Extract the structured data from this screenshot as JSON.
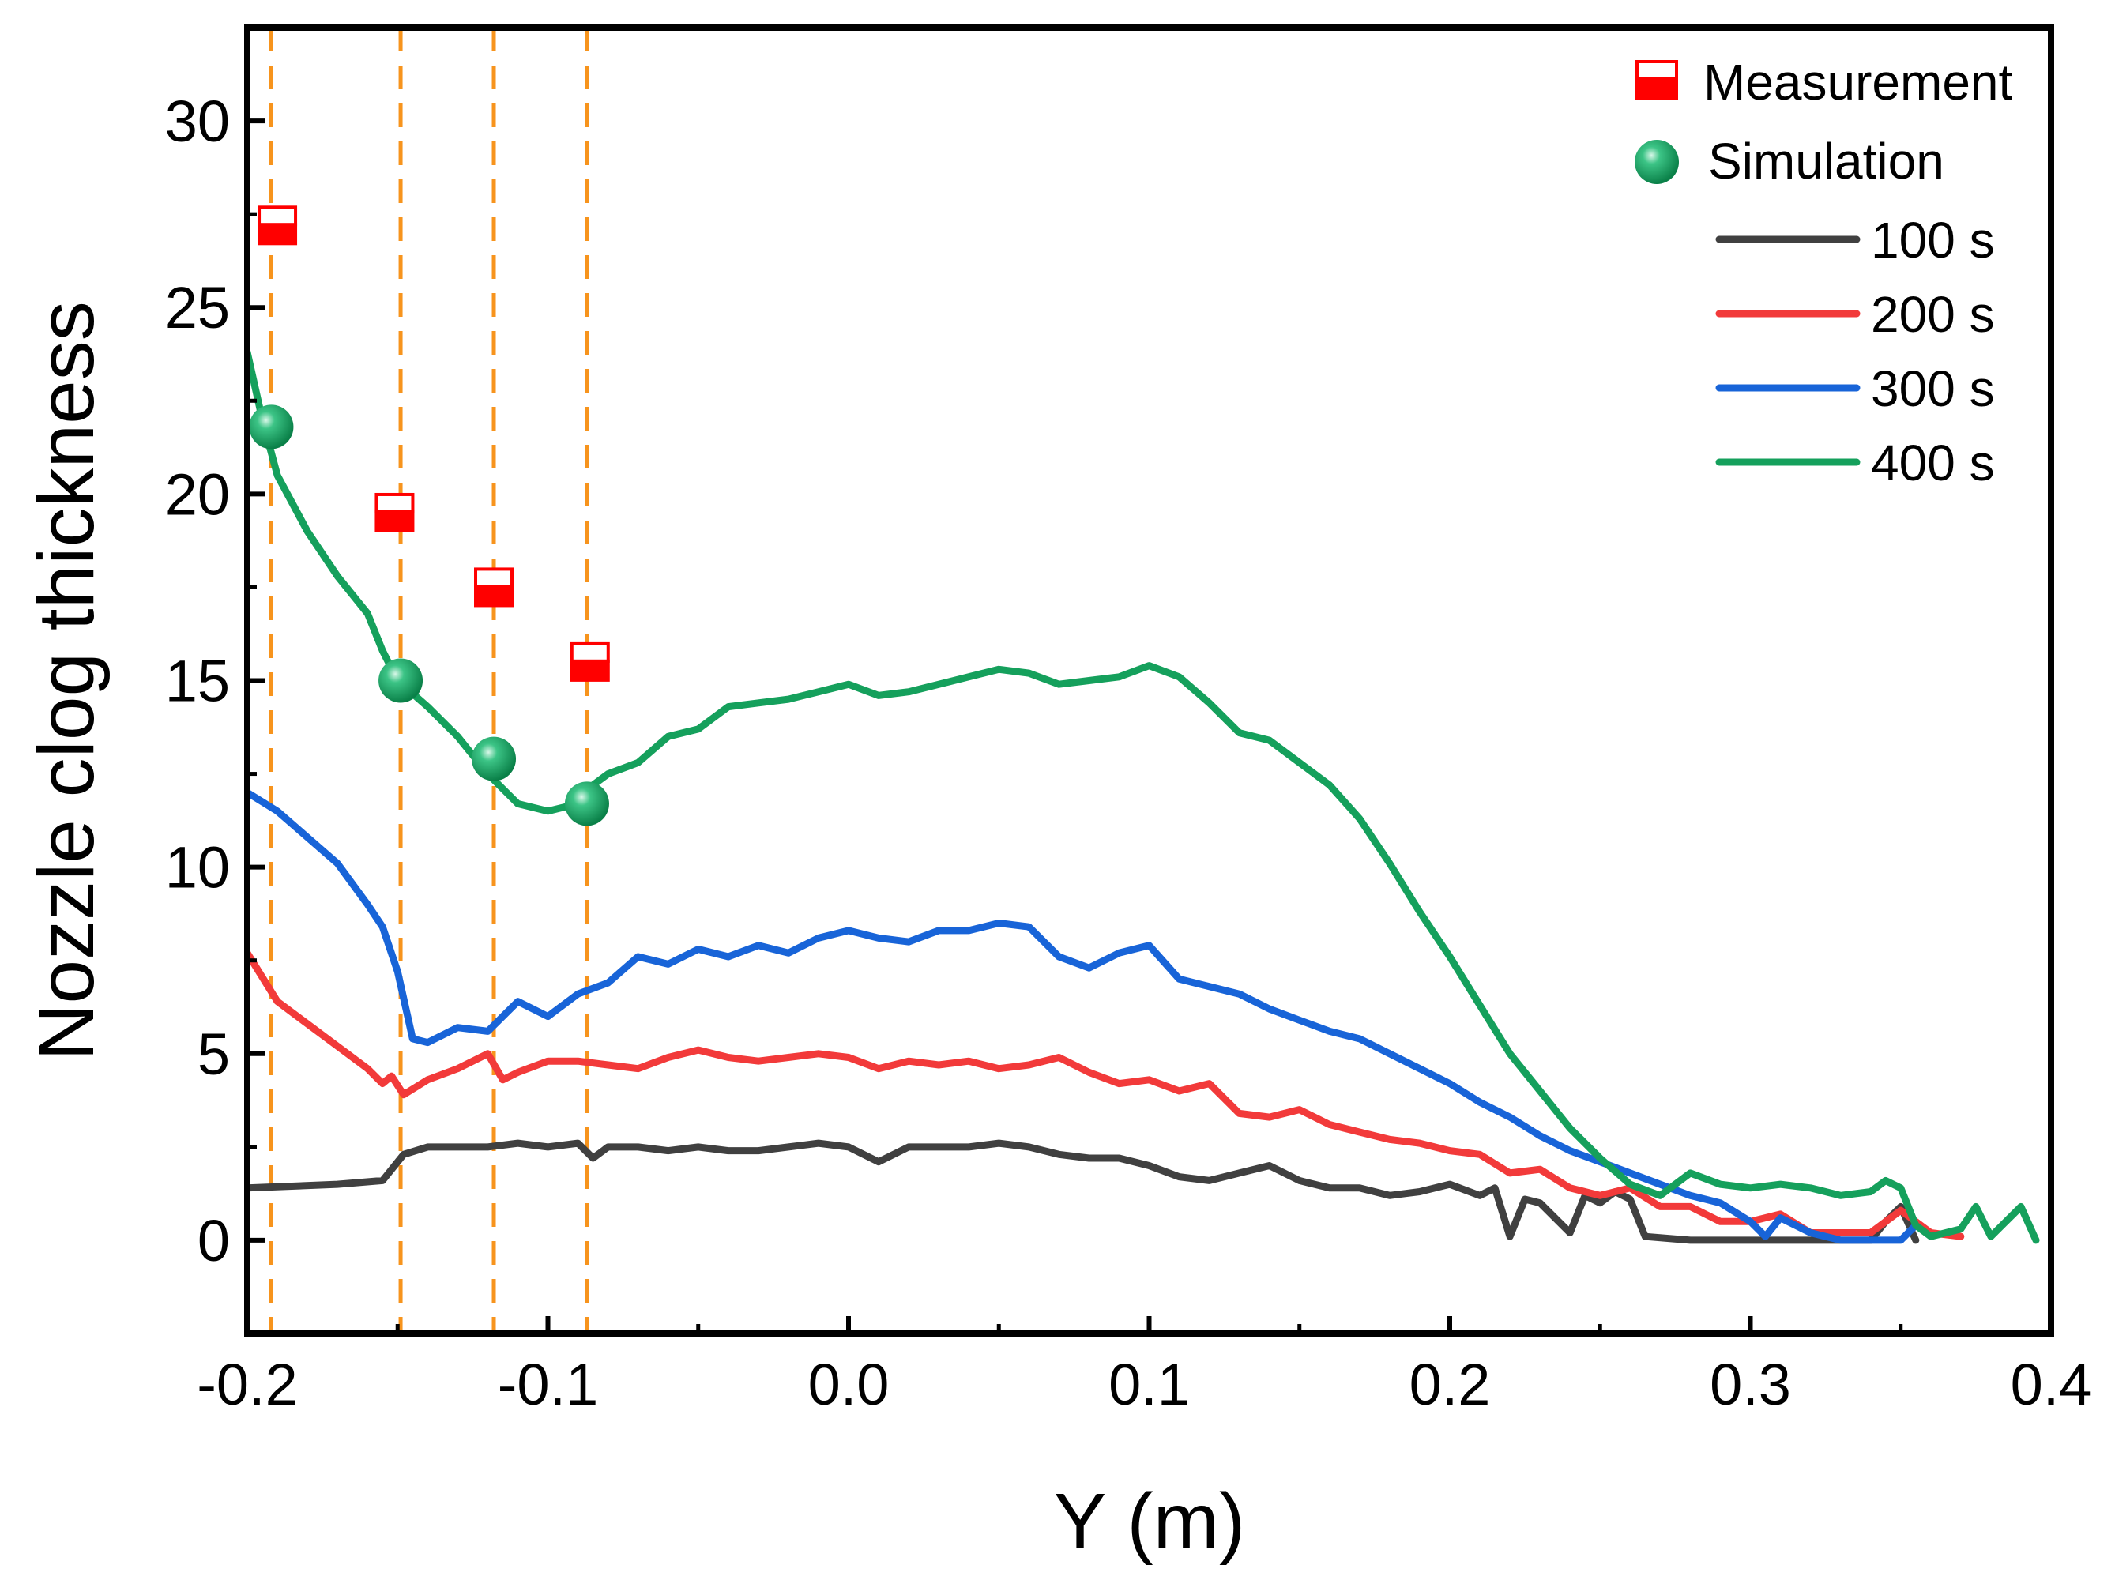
{
  "chart_data": {
    "type": "line",
    "xlabel": "Y (m)",
    "ylabel": "Nozzle clog thickness",
    "xlim": [
      -0.2,
      0.4
    ],
    "ylim": [
      -2.5,
      32.5
    ],
    "x_ticks": [
      -0.2,
      -0.1,
      0.0,
      0.1,
      0.2,
      0.3,
      0.4
    ],
    "x_tick_labels": [
      "-0.2",
      "-0.1",
      "0.0",
      "0.1",
      "0.2",
      "0.3",
      "0.4"
    ],
    "y_ticks": [
      0,
      5,
      10,
      15,
      20,
      25,
      30
    ],
    "y_tick_labels": [
      "0",
      "5",
      "10",
      "15",
      "20",
      "25",
      "30"
    ],
    "reference_lines_x": [
      -0.192,
      -0.149,
      -0.118,
      -0.087
    ],
    "measurement": {
      "name": "Measurement",
      "color": "#ff0000",
      "x": [
        -0.19,
        -0.151,
        -0.118,
        -0.086
      ],
      "y": [
        27.2,
        19.5,
        17.5,
        15.5
      ]
    },
    "simulation": {
      "name": "Simulation",
      "color": "#10a060",
      "x": [
        -0.192,
        -0.149,
        -0.118,
        -0.087
      ],
      "y": [
        21.8,
        15.0,
        12.9,
        11.7
      ]
    },
    "series": [
      {
        "name": "100 s",
        "color": "#404040",
        "x": [
          -0.2,
          -0.17,
          -0.155,
          -0.148,
          -0.14,
          -0.13,
          -0.12,
          -0.11,
          -0.1,
          -0.09,
          -0.085,
          -0.08,
          -0.07,
          -0.06,
          -0.05,
          -0.04,
          -0.03,
          -0.02,
          -0.01,
          0.0,
          0.01,
          0.02,
          0.03,
          0.04,
          0.05,
          0.06,
          0.07,
          0.08,
          0.09,
          0.1,
          0.11,
          0.12,
          0.13,
          0.14,
          0.15,
          0.16,
          0.17,
          0.18,
          0.19,
          0.2,
          0.21,
          0.215,
          0.22,
          0.225,
          0.23,
          0.24,
          0.245,
          0.25,
          0.255,
          0.26,
          0.265,
          0.28,
          0.29,
          0.3,
          0.31,
          0.32,
          0.33,
          0.34,
          0.345,
          0.35,
          0.355
        ],
        "y": [
          1.4,
          1.5,
          1.6,
          2.3,
          2.5,
          2.5,
          2.5,
          2.6,
          2.5,
          2.6,
          2.2,
          2.5,
          2.5,
          2.4,
          2.5,
          2.4,
          2.4,
          2.5,
          2.6,
          2.5,
          2.1,
          2.5,
          2.5,
          2.5,
          2.6,
          2.5,
          2.3,
          2.2,
          2.2,
          2.0,
          1.7,
          1.6,
          1.8,
          2.0,
          1.6,
          1.4,
          1.4,
          1.2,
          1.3,
          1.5,
          1.2,
          1.4,
          0.1,
          1.1,
          1.0,
          0.2,
          1.2,
          1.0,
          1.3,
          1.1,
          0.1,
          0.0,
          0.0,
          0.0,
          0.0,
          0.0,
          0.0,
          0.0,
          0.5,
          0.9,
          0.0
        ]
      },
      {
        "name": "200 s",
        "color": "#f23a3a",
        "x": [
          -0.2,
          -0.19,
          -0.18,
          -0.17,
          -0.16,
          -0.155,
          -0.152,
          -0.148,
          -0.14,
          -0.13,
          -0.12,
          -0.115,
          -0.11,
          -0.1,
          -0.09,
          -0.08,
          -0.07,
          -0.06,
          -0.05,
          -0.04,
          -0.03,
          -0.02,
          -0.01,
          0.0,
          0.01,
          0.02,
          0.03,
          0.04,
          0.05,
          0.06,
          0.07,
          0.08,
          0.09,
          0.1,
          0.11,
          0.12,
          0.13,
          0.14,
          0.15,
          0.16,
          0.17,
          0.18,
          0.19,
          0.2,
          0.21,
          0.22,
          0.23,
          0.24,
          0.25,
          0.26,
          0.27,
          0.28,
          0.29,
          0.3,
          0.31,
          0.32,
          0.33,
          0.34,
          0.35,
          0.36,
          0.37
        ],
        "y": [
          7.7,
          6.4,
          5.8,
          5.2,
          4.6,
          4.2,
          4.4,
          3.9,
          4.3,
          4.6,
          5.0,
          4.3,
          4.5,
          4.8,
          4.8,
          4.7,
          4.6,
          4.9,
          5.1,
          4.9,
          4.8,
          4.9,
          5.0,
          4.9,
          4.6,
          4.8,
          4.7,
          4.8,
          4.6,
          4.7,
          4.9,
          4.5,
          4.2,
          4.3,
          4.0,
          4.2,
          3.4,
          3.3,
          3.5,
          3.1,
          2.9,
          2.7,
          2.6,
          2.4,
          2.3,
          1.8,
          1.9,
          1.4,
          1.2,
          1.4,
          0.9,
          0.9,
          0.5,
          0.5,
          0.7,
          0.2,
          0.2,
          0.2,
          0.8,
          0.2,
          0.1
        ]
      },
      {
        "name": "300 s",
        "color": "#1864d8",
        "x": [
          -0.2,
          -0.19,
          -0.18,
          -0.17,
          -0.16,
          -0.155,
          -0.15,
          -0.145,
          -0.14,
          -0.13,
          -0.12,
          -0.11,
          -0.1,
          -0.09,
          -0.08,
          -0.07,
          -0.06,
          -0.05,
          -0.04,
          -0.03,
          -0.02,
          -0.01,
          0.0,
          0.01,
          0.02,
          0.03,
          0.04,
          0.05,
          0.06,
          0.07,
          0.08,
          0.09,
          0.1,
          0.11,
          0.12,
          0.13,
          0.14,
          0.15,
          0.16,
          0.17,
          0.18,
          0.19,
          0.2,
          0.21,
          0.22,
          0.23,
          0.24,
          0.25,
          0.26,
          0.27,
          0.28,
          0.29,
          0.3,
          0.305,
          0.31,
          0.32,
          0.33,
          0.34,
          0.35,
          0.355
        ],
        "y": [
          12.0,
          11.5,
          10.8,
          10.1,
          9.0,
          8.4,
          7.2,
          5.4,
          5.3,
          5.7,
          5.6,
          6.4,
          6.0,
          6.6,
          6.9,
          7.6,
          7.4,
          7.8,
          7.6,
          7.9,
          7.7,
          8.1,
          8.3,
          8.1,
          8.0,
          8.3,
          8.3,
          8.5,
          8.4,
          7.6,
          7.3,
          7.7,
          7.9,
          7.0,
          6.8,
          6.6,
          6.2,
          5.9,
          5.6,
          5.4,
          5.0,
          4.6,
          4.2,
          3.7,
          3.3,
          2.8,
          2.4,
          2.1,
          1.8,
          1.5,
          1.2,
          1.0,
          0.5,
          0.1,
          0.6,
          0.2,
          0.0,
          0.0,
          0.0,
          0.4
        ]
      },
      {
        "name": "400 s",
        "color": "#15a05c",
        "x": [
          -0.2,
          -0.195,
          -0.19,
          -0.18,
          -0.17,
          -0.16,
          -0.155,
          -0.15,
          -0.14,
          -0.13,
          -0.12,
          -0.11,
          -0.1,
          -0.09,
          -0.085,
          -0.08,
          -0.07,
          -0.06,
          -0.05,
          -0.04,
          -0.03,
          -0.02,
          -0.01,
          0.0,
          0.01,
          0.02,
          0.03,
          0.04,
          0.05,
          0.06,
          0.07,
          0.08,
          0.09,
          0.1,
          0.11,
          0.12,
          0.13,
          0.14,
          0.15,
          0.16,
          0.17,
          0.18,
          0.19,
          0.2,
          0.21,
          0.22,
          0.23,
          0.24,
          0.25,
          0.26,
          0.27,
          0.28,
          0.29,
          0.3,
          0.31,
          0.32,
          0.33,
          0.34,
          0.345,
          0.35,
          0.355,
          0.36,
          0.37,
          0.375,
          0.38,
          0.39,
          0.395
        ],
        "y": [
          23.8,
          22.0,
          20.5,
          19.0,
          17.8,
          16.8,
          15.8,
          15.0,
          14.3,
          13.5,
          12.5,
          11.7,
          11.5,
          11.7,
          12.2,
          12.5,
          12.8,
          13.5,
          13.7,
          14.3,
          14.4,
          14.5,
          14.7,
          14.9,
          14.6,
          14.7,
          14.9,
          15.1,
          15.3,
          15.2,
          14.9,
          15.0,
          15.1,
          15.4,
          15.1,
          14.4,
          13.6,
          13.4,
          12.8,
          12.2,
          11.3,
          10.1,
          8.8,
          7.6,
          6.3,
          5.0,
          4.0,
          3.0,
          2.2,
          1.5,
          1.2,
          1.8,
          1.5,
          1.4,
          1.5,
          1.4,
          1.2,
          1.3,
          1.6,
          1.4,
          0.4,
          0.1,
          0.3,
          0.9,
          0.1,
          0.9,
          0.0
        ]
      }
    ]
  }
}
